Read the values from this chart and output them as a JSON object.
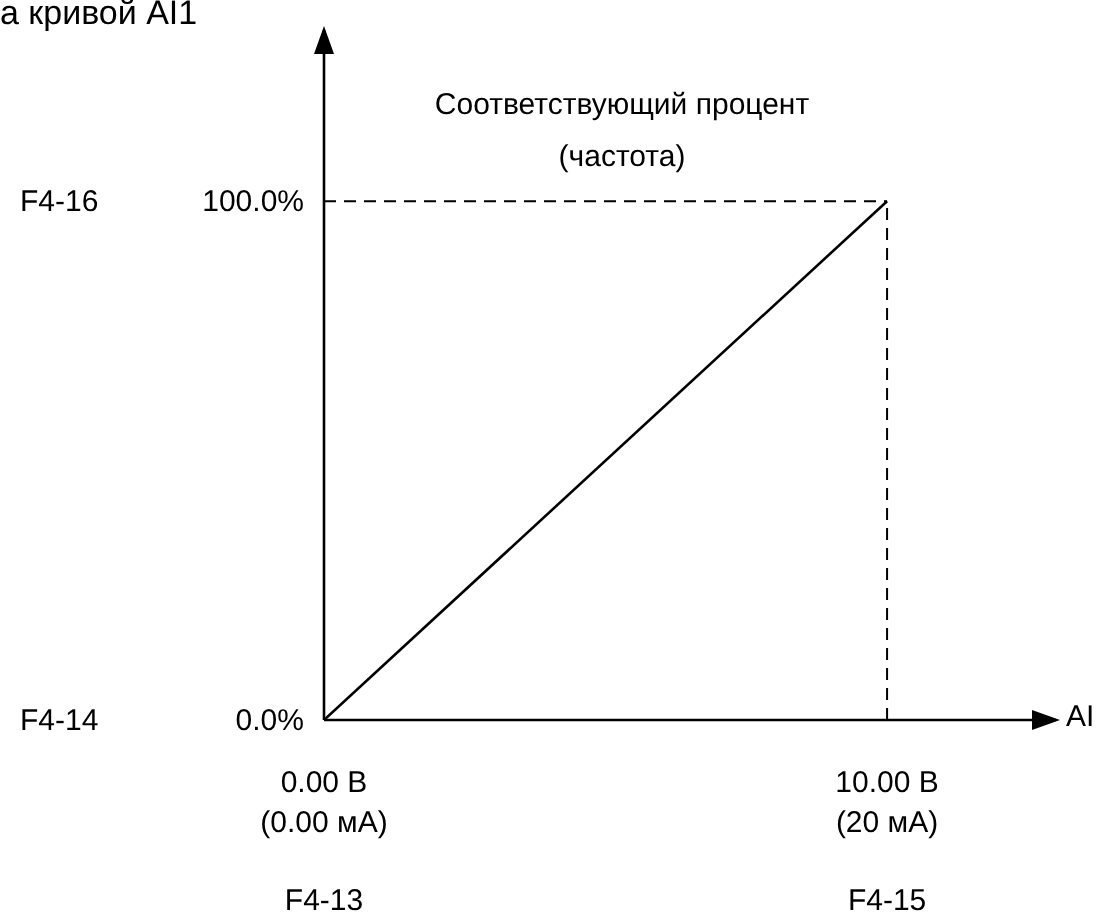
{
  "chart_data": {
    "type": "line",
    "title": "а кривой AI1",
    "ylabel": "Соответствующий процент\n(частота)",
    "xlabel": "AI",
    "x": [
      0,
      10
    ],
    "series": [
      {
        "color": "#000000",
        "values": [
          0,
          100
        ]
      }
    ],
    "xlim": [
      0,
      13
    ],
    "ylim": [
      0,
      133
    ],
    "xticks": [
      {
        "value": 0,
        "label": "0.00 В"
      },
      {
        "value": 10,
        "label": "10.00 В"
      }
    ],
    "yticks": [
      {
        "value": 0,
        "label": "0.0%"
      },
      {
        "value": 100,
        "label": "100.0%"
      }
    ],
    "annotations": [
      "(0.00 мА)",
      "F4-13",
      "(20 мА)",
      "F4-15",
      "F4-14",
      "F4-16"
    ],
    "ref_lines": [
      {
        "axis": "y",
        "value": 100,
        "line_style": "dashed",
        "color": "#000000"
      },
      {
        "axis": "x",
        "value": 10,
        "line_style": "dashed",
        "color": "#000000"
      }
    ],
    "marker": "none",
    "line_style": "solid"
  }
}
